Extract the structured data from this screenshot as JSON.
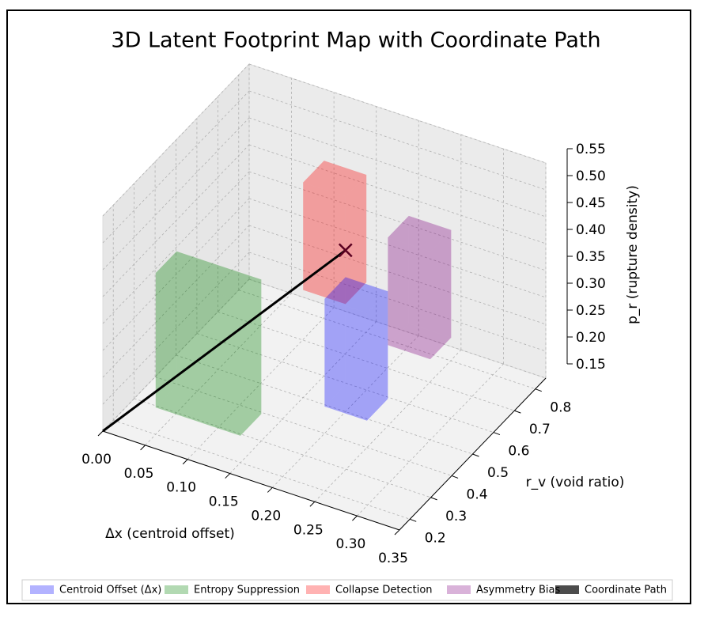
{
  "chart_data": {
    "type": "box3d",
    "title": "3D Latent Footprint Map with Coordinate Path",
    "xlabel": "Δx (centroid offset)",
    "ylabel": "r_v (void ratio)",
    "zlabel": "p_r (rupture density)",
    "xlim": [
      0,
      0.35
    ],
    "ylim": [
      0.15,
      0.85
    ],
    "zlim": [
      0.15,
      0.55
    ],
    "xticks": [
      {
        "value": 0,
        "label": "0.00"
      },
      0.05,
      {
        "value": 0.1,
        "label": "0.10"
      },
      0.15,
      {
        "value": 0.2,
        "label": "0.20"
      },
      0.25,
      {
        "value": 0.3,
        "label": "0.30"
      },
      0.35
    ],
    "yticks": [
      0.2,
      0.3,
      0.4,
      0.5,
      0.6,
      0.7,
      0.8
    ],
    "zticks": [
      0.15,
      {
        "value": 0.2,
        "label": "0.20"
      },
      0.25,
      {
        "value": 0.3,
        "label": "0.30"
      },
      0.35,
      {
        "value": 0.4,
        "label": "0.40"
      },
      0.45,
      {
        "value": 0.5,
        "label": "0.50"
      },
      0.55
    ],
    "grid": true,
    "series": [
      {
        "name": "Centroid Offset (Δx)",
        "color": "#0000ff",
        "alpha": 0.3,
        "x": [
          0.2,
          0.25
        ],
        "y": [
          0.4,
          0.5
        ],
        "z": [
          0.2,
          0.4
        ]
      },
      {
        "name": "Entropy Suppression",
        "color": "#008000",
        "alpha": 0.3,
        "x": [
          0.05,
          0.15
        ],
        "y": [
          0.2,
          0.3
        ],
        "z": [
          0.2,
          0.45
        ]
      },
      {
        "name": "Collapse Detection",
        "color": "#ff0000",
        "alpha": 0.3,
        "x": [
          0.15,
          0.2
        ],
        "y": [
          0.5,
          0.6
        ],
        "z": [
          0.35,
          0.55
        ]
      },
      {
        "name": "Asymmetry Bias",
        "color": "#800080",
        "alpha": 0.3,
        "x": [
          0.25,
          0.3
        ],
        "y": [
          0.5,
          0.6
        ],
        "z": [
          0.3,
          0.5
        ]
      }
    ],
    "path": {
      "name": "Coordinate Path",
      "color": "#000000",
      "alpha": 0.7,
      "x": [
        0,
        0.2
      ],
      "y": [
        0.15,
        0.5
      ],
      "z": [
        0.15,
        0.45
      ]
    },
    "legend": "bottom"
  }
}
